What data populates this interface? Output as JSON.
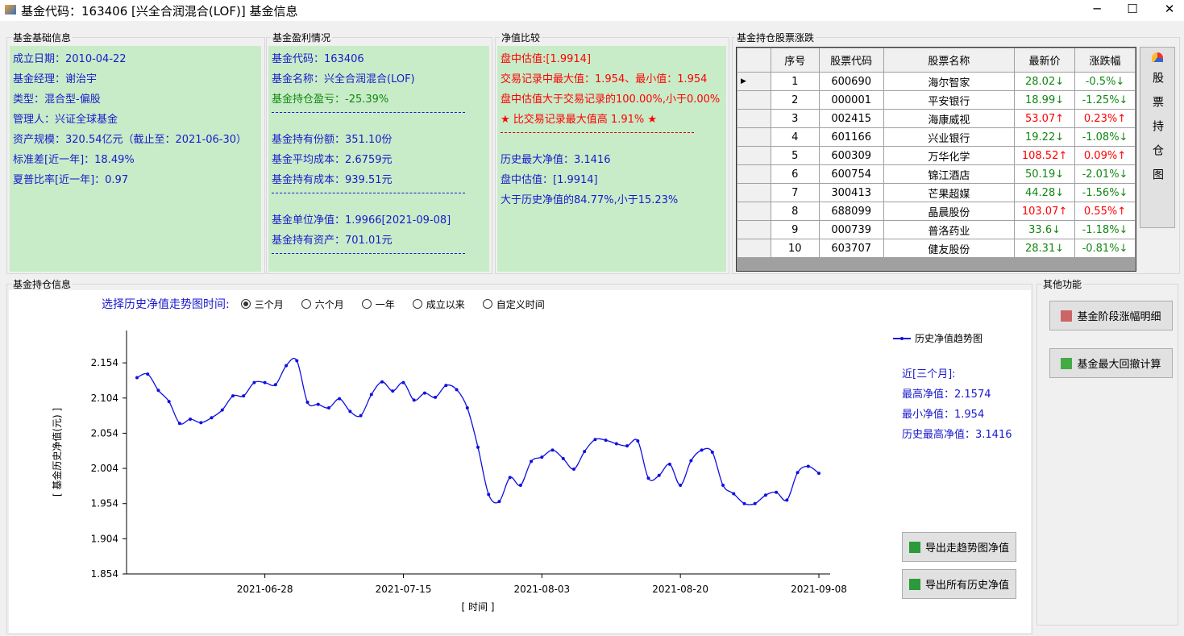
{
  "window": {
    "title": "基金代码：163406 [兴全合润混合(LOF)] 基金信息"
  },
  "basic_info": {
    "title": "基金基础信息",
    "lines": [
      "成立日期：2010-04-22",
      "基金经理：谢治宇",
      "类型：混合型-偏股",
      "管理人：兴证全球基金",
      "资产规模：320.54亿元（截止至：2021-06-30）",
      "标准差[近一年]：18.49%",
      "夏普比率[近一年]：0.97"
    ]
  },
  "profit": {
    "title": "基金盈利情况",
    "groups": [
      [
        "基金代码：163406",
        "基金名称：兴全合润混合(LOF)",
        "基金持仓盈亏：-25.39%"
      ],
      [
        "基金持有份额：351.10份",
        "基金平均成本：2.6759元",
        "基金持有成本：939.51元"
      ],
      [
        "基金单位净值：1.9966[2021-09-08]",
        "基金持有资产：701.01元"
      ]
    ]
  },
  "comparison": {
    "title": "净值比较",
    "groups": [
      [
        "盘中估值:[1.9914]",
        "交易记录中最大值：1.954、最小值：1.954",
        "盘中估值大于交易记录的100.00%,小于0.00%",
        "★ 比交易记录最大值高 1.91% ★"
      ],
      [
        "历史最大净值：3.1416",
        "盘中估值：[1.9914]",
        "大于历史净值的84.77%,小于15.23%"
      ]
    ]
  },
  "holdings": {
    "title": "基金持仓股票涨跌",
    "columns": [
      "序号",
      "股票代码",
      "股票名称",
      "最新价",
      "涨跌幅"
    ],
    "rows": [
      [
        "1",
        "600690",
        "海尔智家",
        "28.02↓",
        "-0.5%↓"
      ],
      [
        "2",
        "000001",
        "平安银行",
        "18.99↓",
        "-1.25%↓"
      ],
      [
        "3",
        "002415",
        "海康威视",
        "53.07↑",
        "0.23%↑"
      ],
      [
        "4",
        "601166",
        "兴业银行",
        "19.22↓",
        "-1.08%↓"
      ],
      [
        "5",
        "600309",
        "万华化学",
        "108.52↑",
        "0.09%↑"
      ],
      [
        "6",
        "600754",
        "锦江酒店",
        "50.19↓",
        "-2.01%↓"
      ],
      [
        "7",
        "300413",
        "芒果超媒",
        "44.28↓",
        "-1.56%↓"
      ],
      [
        "8",
        "688099",
        "晶晨股份",
        "103.07↑",
        "0.55%↑"
      ],
      [
        "9",
        "000739",
        "普洛药业",
        "33.6↓",
        "-1.18%↓"
      ],
      [
        "10",
        "603707",
        "健友股份",
        "28.31↓",
        "-0.81%↓"
      ]
    ],
    "side_button": "股票持仓图"
  },
  "chart_panel": {
    "title": "基金持仓信息",
    "range_prompt": "选择历史净值走势图时间:",
    "range_options": [
      "三个月",
      "六个月",
      "一年",
      "成立以来",
      "自定义时间"
    ],
    "selected_range": 0
  },
  "chart_data": {
    "type": "line",
    "xlabel": "[ 时间 ]",
    "ylabel": "[ 基金历史净值(元) ]",
    "categories": [
      null,
      null,
      null,
      null,
      null,
      null,
      null,
      null,
      null,
      null,
      null,
      null,
      "2021-06-28",
      null,
      null,
      null,
      null,
      null,
      null,
      null,
      null,
      null,
      null,
      null,
      null,
      "2021-07-15",
      null,
      null,
      null,
      null,
      null,
      null,
      null,
      null,
      null,
      null,
      null,
      null,
      "2021-08-03",
      null,
      null,
      null,
      null,
      null,
      null,
      null,
      null,
      null,
      null,
      null,
      null,
      "2021-08-20",
      null,
      null,
      null,
      null,
      null,
      null,
      null,
      null,
      null,
      null,
      null,
      null,
      "2021-09-08"
    ],
    "series": [
      {
        "name": "历史净值趋势图",
        "color": "#1010e0",
        "values": [
          2.133,
          2.138,
          2.115,
          2.099,
          2.068,
          2.074,
          2.069,
          2.076,
          2.087,
          2.107,
          2.107,
          2.126,
          2.126,
          2.123,
          2.15,
          2.157,
          2.098,
          2.095,
          2.09,
          2.103,
          2.085,
          2.079,
          2.109,
          2.127,
          2.114,
          2.126,
          2.101,
          2.111,
          2.105,
          2.122,
          2.116,
          2.09,
          2.034,
          1.967,
          1.957,
          1.991,
          1.98,
          2.014,
          2.02,
          2.03,
          2.018,
          2.003,
          2.028,
          2.045,
          2.044,
          2.039,
          2.036,
          2.043,
          1.99,
          1.994,
          2.01,
          1.98,
          2.015,
          2.03,
          2.027,
          1.98,
          1.968,
          1.954,
          1.954,
          1.966,
          1.97,
          1.959,
          1.998,
          2.007,
          1.997
        ]
      }
    ],
    "ylim": [
      1.854,
      2.2
    ],
    "yticks": [
      1.854,
      1.904,
      1.954,
      2.004,
      2.054,
      2.104,
      2.154
    ]
  },
  "summary": {
    "lines": [
      "近[三个月]:",
      "最高净值：2.1574",
      "最小净值：1.954",
      "历史最高净值：3.1416"
    ]
  },
  "export_buttons": [
    "导出走趋势图净值",
    "导出所有历史净值"
  ],
  "other": {
    "title": "其他功能",
    "buttons": [
      "基金阶段涨幅明细",
      "基金最大回撤计算"
    ]
  }
}
